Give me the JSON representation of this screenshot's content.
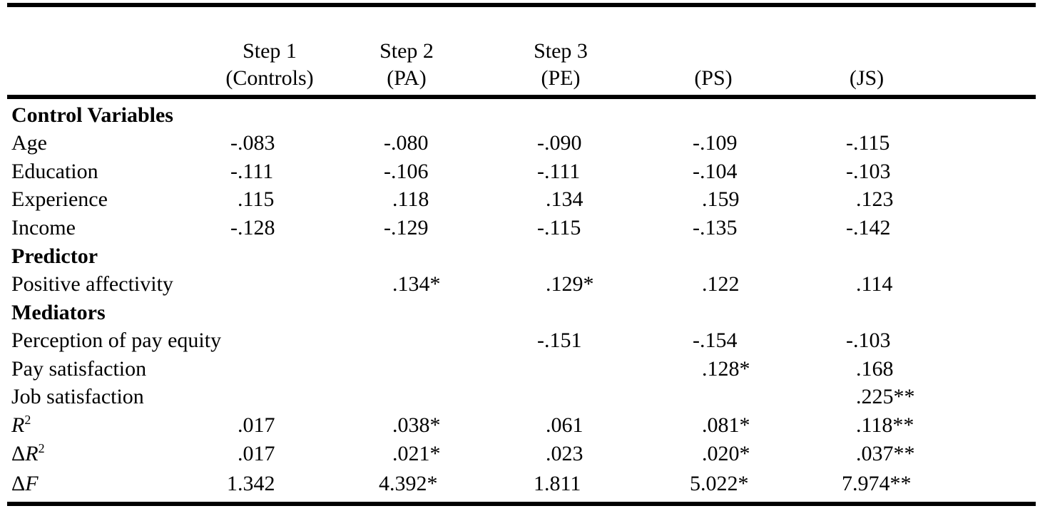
{
  "headers": [
    {
      "line1": "Step 1",
      "line2": "(Controls)"
    },
    {
      "line1": "Step 2",
      "line2": "(PA)"
    },
    {
      "line1": "Step 3",
      "line2": "(PE)"
    },
    {
      "line1": "",
      "line2": "(PS)"
    },
    {
      "line1": "",
      "line2": "(JS)"
    }
  ],
  "sections": {
    "controls": "Control Variables",
    "predictor": "Predictor",
    "mediators": "Mediators"
  },
  "rows": {
    "age": {
      "label": "Age",
      "values": [
        "-.083",
        "-.080",
        "-.090",
        "-.109",
        "-.115"
      ]
    },
    "education": {
      "label": "Education",
      "values": [
        "-.111",
        "-.106",
        "-.111",
        "-.104",
        "-.103"
      ]
    },
    "experience": {
      "label": "Experience",
      "values": [
        ".115",
        ".118",
        ".134",
        ".159",
        ".123"
      ]
    },
    "income": {
      "label": "Income",
      "values": [
        "-.128",
        "-.129",
        "-.115",
        "-.135",
        "-.142"
      ]
    },
    "positive_affectivity": {
      "label": "Positive affectivity",
      "values": [
        "",
        ".134*",
        ".129*",
        ".122",
        ".114"
      ]
    },
    "pay_equity": {
      "label": "Perception of pay equity",
      "values": [
        "",
        "",
        "-.151",
        "-.154",
        "-.103"
      ]
    },
    "pay_satisfaction": {
      "label": "Pay satisfaction",
      "values": [
        "",
        "",
        "",
        ".128*",
        ".168"
      ]
    },
    "job_satisfaction": {
      "label": "Job satisfaction",
      "values": [
        "",
        "",
        "",
        "",
        ".225**"
      ]
    },
    "r2": {
      "label_main": "R",
      "label_sup": "2",
      "values": [
        ".017",
        ".038*",
        ".061",
        ".081*",
        ".118**"
      ]
    },
    "delta_r2": {
      "label_delta": "Δ",
      "label_main": "R",
      "label_sup": "2",
      "values": [
        ".017",
        ".021*",
        ".023",
        ".020*",
        ".037**"
      ]
    },
    "delta_f": {
      "label_delta": "Δ",
      "label_main": "F",
      "values": [
        "1.342",
        "4.392*",
        "1.811",
        "5.022*",
        "7.974**"
      ]
    }
  }
}
